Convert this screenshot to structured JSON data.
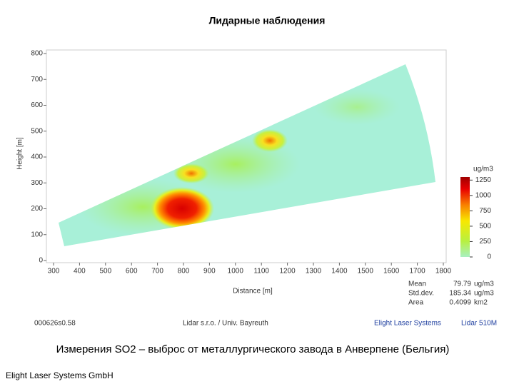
{
  "chart_data": {
    "type": "heatmap",
    "title": "Лидарные наблюдения",
    "xlabel": "Distance [m]",
    "ylabel": "Height [m]",
    "xlim": [
      300,
      1800
    ],
    "xticks": [
      300,
      400,
      500,
      600,
      700,
      800,
      900,
      1000,
      1100,
      1200,
      1300,
      1400,
      1500,
      1600,
      1700,
      1800
    ],
    "ylim": [
      0,
      800
    ],
    "yticks": [
      0,
      100,
      200,
      300,
      400,
      500,
      600,
      700,
      800
    ],
    "colorbar": {
      "unit": "ug/m3",
      "lim": [
        0,
        1300
      ],
      "ticks": [
        0,
        250,
        500,
        750,
        1000,
        1250
      ]
    },
    "stats": [
      {
        "label": "Mean",
        "value": 79.79,
        "unit": "ug/m3"
      },
      {
        "label": "Std.dev.",
        "value": 185.34,
        "unit": "ug/m3"
      },
      {
        "label": "Area",
        "value": 0.4099,
        "unit": "km2"
      }
    ],
    "footer": [
      "000626s0.58",
      "Lidar s.r.o. / Univ. Bayreuth",
      "Elight Laser Systems",
      "Lidar 510M"
    ],
    "caption": "Измерения SO2 – выброс от  металлургического завода в Анверпене (Бельгия)",
    "company": "Elight Laser Systems GmbH"
  }
}
